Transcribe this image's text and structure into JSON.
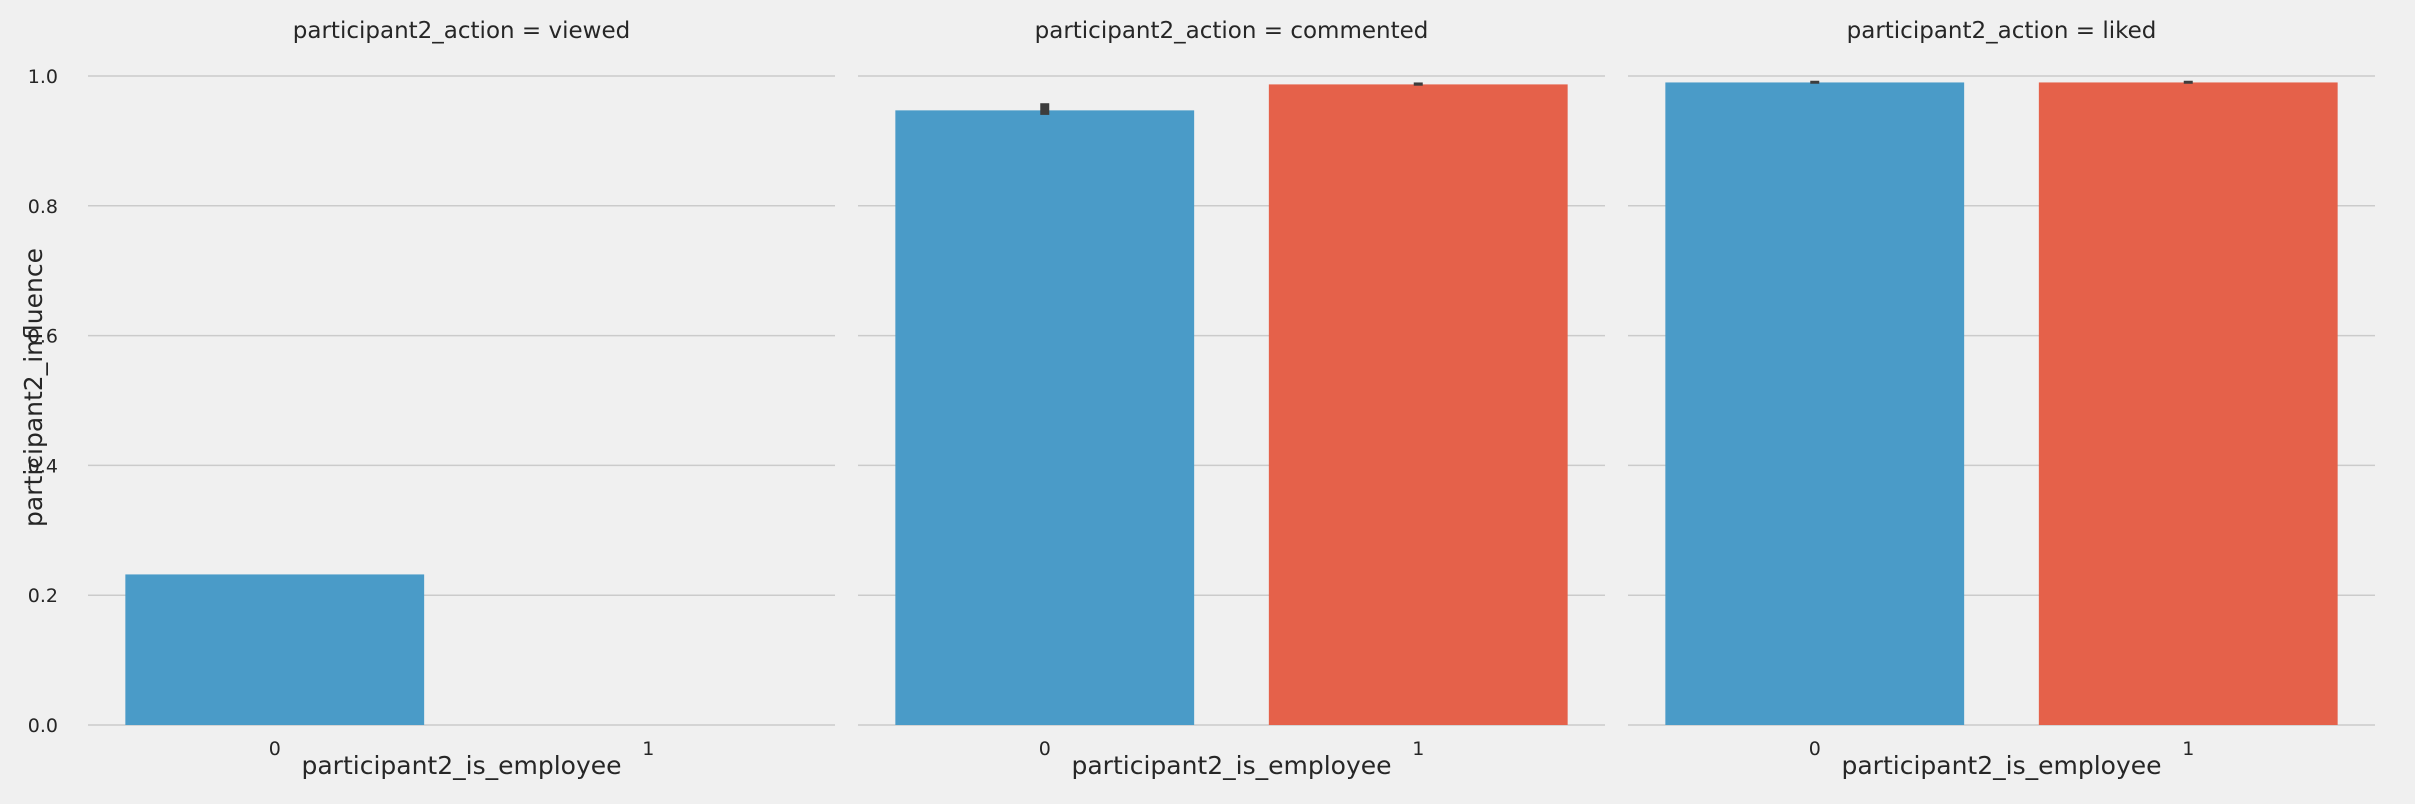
{
  "chart_data": [
    {
      "type": "bar",
      "title": "participant2_action = viewed",
      "xlabel": "participant2_is_employee",
      "ylabel": "participant2_influence",
      "categories": [
        "0",
        "1"
      ],
      "values": [
        0.232,
        0.0
      ],
      "error": [
        null,
        null
      ],
      "colors": [
        "#4a9bc8",
        "#e5614a"
      ],
      "ylim": [
        0,
        1.04
      ],
      "yticks": [
        "0.0",
        "0.2",
        "0.4",
        "0.6",
        "0.8",
        "1.0"
      ],
      "grid": true
    },
    {
      "type": "bar",
      "title": "participant2_action = commented",
      "xlabel": "participant2_is_employee",
      "ylabel": "",
      "categories": [
        "0",
        "1"
      ],
      "values": [
        0.947,
        0.987
      ],
      "error": [
        [
          0.94,
          0.958
        ],
        [
          0.985,
          0.99
        ]
      ],
      "colors": [
        "#4a9bc8",
        "#e5614a"
      ],
      "ylim": [
        0,
        1.04
      ],
      "grid": true
    },
    {
      "type": "bar",
      "title": "participant2_action = liked",
      "xlabel": "participant2_is_employee",
      "ylabel": "",
      "categories": [
        "0",
        "1"
      ],
      "values": [
        0.99,
        0.99
      ],
      "error": [
        [
          0.988,
          0.992
        ],
        [
          0.988,
          0.992
        ]
      ],
      "colors": [
        "#4a9bc8",
        "#e5614a"
      ],
      "ylim": [
        0,
        1.04
      ],
      "grid": true
    }
  ]
}
